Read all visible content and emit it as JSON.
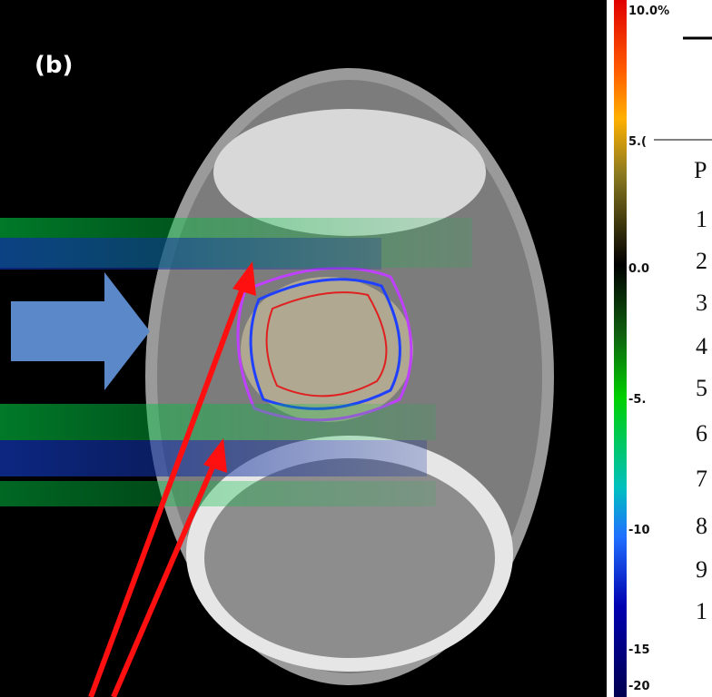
{
  "figure": {
    "panel_label": "(b)",
    "colorbar_labels": [
      "10.0%",
      "5.(",
      "0.0",
      "-5.",
      "-10",
      "-15",
      "-20"
    ],
    "side_list": [
      "P",
      "1",
      "2",
      "3",
      "4",
      "5",
      "6",
      "7",
      "8",
      "9",
      "1"
    ]
  }
}
